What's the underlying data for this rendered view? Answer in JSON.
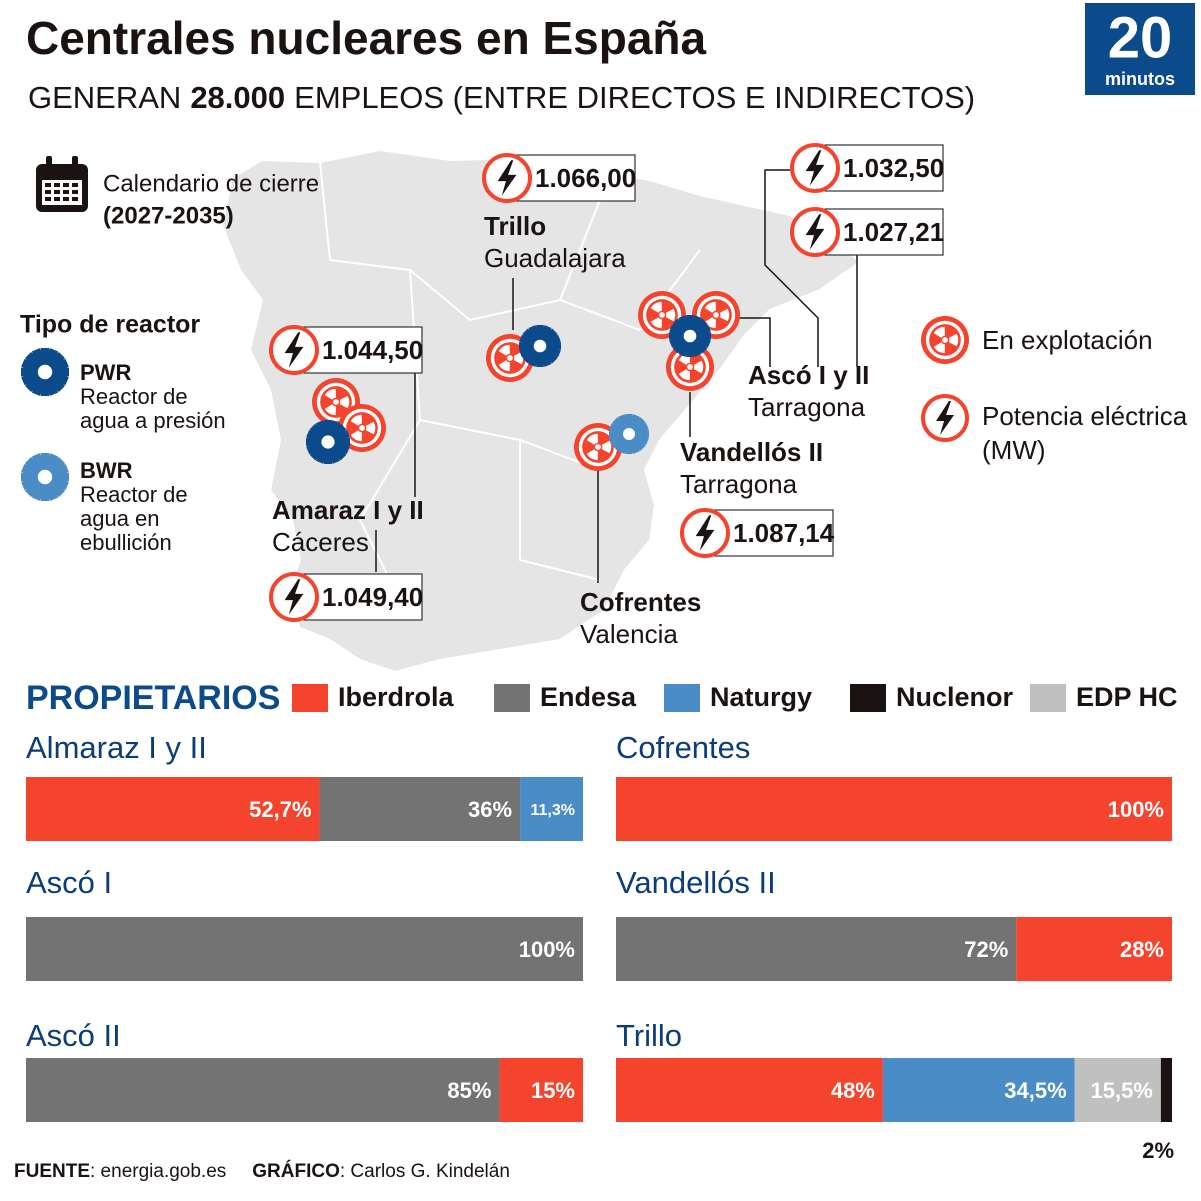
{
  "header": {
    "title": "Centrales nucleares en España",
    "subtitle": [
      "GENERAN",
      "28.000",
      "EMPLEOS (ENTRE DIRECTOS E INDIRECTOS)"
    ],
    "logo": [
      "20",
      "minutos"
    ]
  },
  "calendar": [
    "Calendario de cierre",
    "(2027-2035)"
  ],
  "reactor_types": {
    "title": "Tipo de reactor",
    "items": [
      {
        "code": "PWR",
        "description": [
          "Reactor de",
          "agua a presión"
        ]
      },
      {
        "code": "BWR",
        "description": [
          "Reactor de",
          "agua en",
          "ebullición"
        ]
      }
    ]
  },
  "map_legend": {
    "operating": "En explotación",
    "power": [
      "Potencia eléctrica",
      "(MW)"
    ]
  },
  "plants": [
    {
      "name": "Trillo",
      "province": "Guadalajara",
      "power": [
        "1.066,00"
      ]
    },
    {
      "name": "Ascó I y II",
      "province": "Tarragona",
      "power": [
        "1.032,50",
        "1.027,21"
      ]
    },
    {
      "name": "Amaraz I y II",
      "province": "Cáceres",
      "power": [
        "1.044,50",
        "1.049,40"
      ]
    },
    {
      "name": "Vandellós II",
      "province": "Tarragona",
      "power": [
        "1.087,14"
      ]
    },
    {
      "name": "Cofrentes",
      "province": "Valencia"
    }
  ],
  "owners": {
    "title": "PROPIETARIOS",
    "items": [
      {
        "name": "Iberdrola",
        "color": "#f4442e"
      },
      {
        "name": "Endesa",
        "color": "#737373"
      },
      {
        "name": "Naturgy",
        "color": "#4a8cc6"
      },
      {
        "name": "Nuclenor",
        "color": "#1a1311"
      },
      {
        "name": "EDP HC",
        "color": "#c0c0c0"
      }
    ]
  },
  "chart_data": [
    {
      "type": "stacked_bar",
      "title": "Almaraz I y II",
      "xlim": [
        0,
        100
      ],
      "series": [
        {
          "name": "Iberdrola",
          "values": [
            52.7
          ],
          "value_labels": [
            "52,7%"
          ]
        },
        {
          "name": "Endesa",
          "values": [
            36
          ],
          "value_labels": [
            "36%"
          ]
        },
        {
          "name": "Naturgy",
          "values": [
            11.3
          ],
          "value_labels": [
            "11,3%"
          ]
        }
      ]
    },
    {
      "type": "stacked_bar",
      "title": "Cofrentes",
      "xlim": [
        0,
        100
      ],
      "series": [
        {
          "name": "Iberdrola",
          "values": [
            100
          ],
          "value_labels": [
            "100%"
          ]
        }
      ]
    },
    {
      "type": "stacked_bar",
      "title": "Ascó I",
      "xlim": [
        0,
        100
      ],
      "series": [
        {
          "name": "Endesa",
          "values": [
            100
          ],
          "value_labels": [
            "100%"
          ]
        }
      ]
    },
    {
      "type": "stacked_bar",
      "title": "Vandellós II",
      "xlim": [
        0,
        100
      ],
      "series": [
        {
          "name": "Endesa",
          "values": [
            72
          ],
          "value_labels": [
            "72%"
          ]
        },
        {
          "name": "Iberdrola",
          "values": [
            28
          ],
          "value_labels": [
            "28%"
          ]
        }
      ]
    },
    {
      "type": "stacked_bar",
      "title": "Ascó II",
      "xlim": [
        0,
        100
      ],
      "series": [
        {
          "name": "Endesa",
          "values": [
            85
          ],
          "value_labels": [
            "85%"
          ]
        },
        {
          "name": "Iberdrola",
          "values": [
            15
          ],
          "value_labels": [
            "15%"
          ]
        }
      ]
    },
    {
      "type": "stacked_bar",
      "title": "Trillo",
      "xlim": [
        0,
        100
      ],
      "series": [
        {
          "name": "Iberdrola",
          "values": [
            48
          ],
          "value_labels": [
            "48%"
          ]
        },
        {
          "name": "Naturgy",
          "values": [
            34.5
          ],
          "value_labels": [
            "34,5%"
          ]
        },
        {
          "name": "EDP HC",
          "values": [
            15.5
          ],
          "value_labels": [
            "15,5%"
          ]
        },
        {
          "name": "Nuclenor",
          "values": [
            2
          ],
          "value_labels": [
            "2%"
          ]
        }
      ]
    }
  ],
  "footer": {
    "source_label": "FUENTE",
    "source": ": energia.gob.es",
    "credit_label": "GRÁFICO",
    "credit": ": Carlos G. Kindelán"
  }
}
